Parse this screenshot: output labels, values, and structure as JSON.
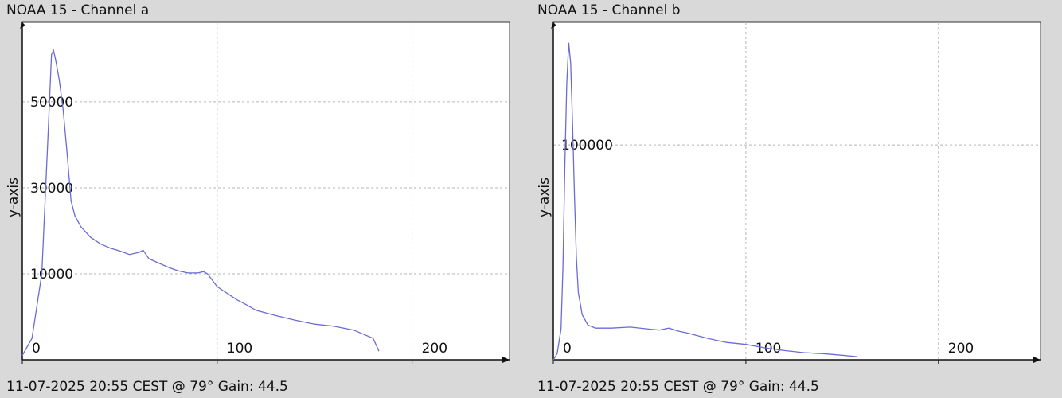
{
  "charts": [
    {
      "title": "NOAA 15 - Channel a",
      "footer": "11-07-2025 20:55 CEST @ 79° Gain: 44.5",
      "chart_data": {
        "type": "line",
        "ylabel": "y-axis",
        "xlabel": "",
        "xlim": [
          0,
          250
        ],
        "ylim": [
          -10000,
          68500
        ],
        "xticks": [
          0,
          100,
          200
        ],
        "yticks": [
          10000,
          30000,
          50000
        ],
        "grid": true,
        "line_color": "#6b6bd6",
        "series": [
          {
            "x": [
              0,
              5,
              10,
              13,
              15,
              16,
              17,
              19,
              21,
              23,
              25,
              27,
              30,
              35,
              40,
              45,
              50,
              55,
              60,
              62,
              65,
              70,
              75,
              80,
              85,
              90,
              93,
              95,
              100,
              105,
              110,
              115,
              120,
              130,
              140,
              150,
              160,
              170,
              180,
              183
            ],
            "y": [
              -9000,
              -5000,
              10000,
              40000,
              61000,
              62000,
              60000,
              55000,
              48000,
              38000,
              27000,
              23500,
              21000,
              18500,
              17000,
              16000,
              15300,
              14500,
              15000,
              15500,
              13500,
              12500,
              11500,
              10700,
              10200,
              10200,
              10500,
              10000,
              7000,
              5500,
              4000,
              2800,
              1500,
              300,
              -800,
              -1700,
              -2200,
              -3100,
              -5000,
              -8000
            ]
          }
        ]
      }
    },
    {
      "title": "NOAA 15 - Channel b",
      "footer": "11-07-2025 20:55 CEST @ 79° Gain: 44.5",
      "chart_data": {
        "type": "line",
        "ylabel": "y-axis",
        "xlabel": "",
        "xlim": [
          0,
          253
        ],
        "ylim": [
          -5000,
          160000
        ],
        "xticks": [
          0,
          100,
          200
        ],
        "yticks": [
          100000
        ],
        "grid": true,
        "line_color": "#6b6bd6",
        "series": [
          {
            "x": [
              0,
              2,
              4,
              5,
              6,
              7,
              8,
              9,
              10,
              11,
              12,
              13,
              15,
              18,
              22,
              30,
              40,
              50,
              55,
              60,
              65,
              70,
              80,
              90,
              100,
              110,
              120,
              130,
              140,
              150,
              158
            ],
            "y": [
              -5000,
              -2000,
              10000,
              40000,
              90000,
              130000,
              150000,
              140000,
              110000,
              75000,
              45000,
              28000,
              17000,
              12000,
              10500,
              10500,
              11000,
              10000,
              9500,
              10500,
              9000,
              8000,
              5500,
              3500,
              2500,
              800,
              -500,
              -1500,
              -2000,
              -2800,
              -3500
            ]
          }
        ]
      }
    }
  ]
}
